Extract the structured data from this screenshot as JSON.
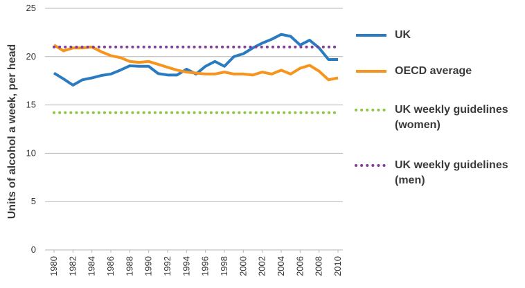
{
  "chart_data": {
    "type": "line",
    "y_label": "Units of alcohol a week, per head",
    "x": [
      1980,
      1981,
      1982,
      1983,
      1984,
      1985,
      1986,
      1987,
      1988,
      1989,
      1990,
      1991,
      1992,
      1993,
      1994,
      1995,
      1996,
      1997,
      1998,
      1999,
      2000,
      2001,
      2002,
      2003,
      2004,
      2005,
      2006,
      2007,
      2008,
      2009,
      2010
    ],
    "xlim": [
      1980,
      2010
    ],
    "xticks": [
      1980,
      1982,
      1984,
      1986,
      1988,
      1990,
      1992,
      1994,
      1996,
      1998,
      2000,
      2002,
      2004,
      2006,
      2008,
      2010
    ],
    "ylim": [
      0,
      25
    ],
    "yticks": [
      0,
      5,
      10,
      15,
      20,
      25
    ],
    "grid": true,
    "series": [
      {
        "name": "UK",
        "color": "#2a7bc0",
        "dash": false,
        "values": [
          18.3,
          17.7,
          17.05,
          17.6,
          17.8,
          18.05,
          18.2,
          18.6,
          19.05,
          19.0,
          19.0,
          18.25,
          18.1,
          18.1,
          18.7,
          18.2,
          19.0,
          19.5,
          19.0,
          20.0,
          20.3,
          20.9,
          21.4,
          21.8,
          22.3,
          22.1,
          21.2,
          21.7,
          20.9,
          19.7,
          19.7
        ]
      },
      {
        "name": "OECD average",
        "color": "#f7941d",
        "dash": false,
        "values": [
          21.2,
          20.6,
          20.9,
          20.9,
          21.0,
          20.5,
          20.1,
          19.9,
          19.5,
          19.4,
          19.5,
          19.2,
          18.9,
          18.6,
          18.4,
          18.3,
          18.2,
          18.2,
          18.4,
          18.2,
          18.2,
          18.1,
          18.4,
          18.2,
          18.6,
          18.2,
          18.8,
          19.1,
          18.5,
          17.6,
          17.8
        ]
      },
      {
        "name": "UK weekly guidelines (women)",
        "color": "#8dc63f",
        "dash": true,
        "values": [
          14.2,
          14.2,
          14.2,
          14.2,
          14.2,
          14.2,
          14.2,
          14.2,
          14.2,
          14.2,
          14.2,
          14.2,
          14.2,
          14.2,
          14.2,
          14.2,
          14.2,
          14.2,
          14.2,
          14.2,
          14.2,
          14.2,
          14.2,
          14.2,
          14.2,
          14.2,
          14.2,
          14.2,
          14.2,
          14.2,
          14.2
        ]
      },
      {
        "name": "UK weekly guidelines (men)",
        "color": "#7f3f98",
        "dash": true,
        "values": [
          21,
          21,
          21,
          21,
          21,
          21,
          21,
          21,
          21,
          21,
          21,
          21,
          21,
          21,
          21,
          21,
          21,
          21,
          21,
          21,
          21,
          21,
          21,
          21,
          21,
          21,
          21,
          21,
          21,
          21,
          21
        ]
      }
    ]
  }
}
